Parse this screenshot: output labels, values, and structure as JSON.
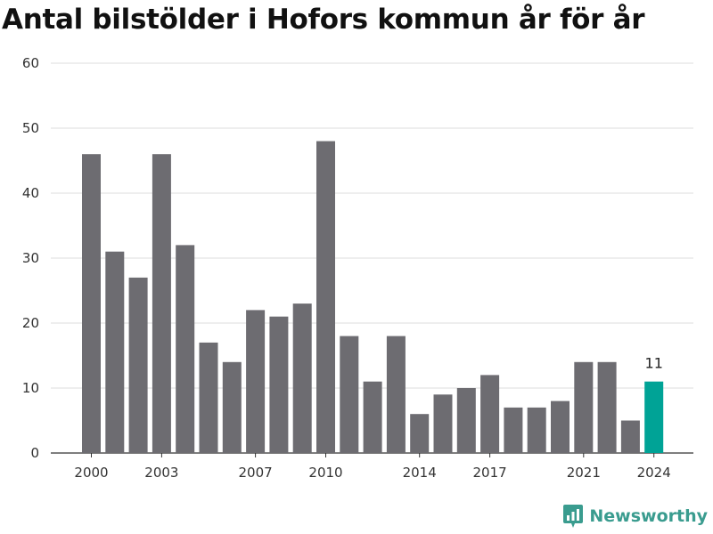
{
  "title": "Antal bilstölder i Hofors kommun år för år",
  "brand": {
    "name": "Newsworthy",
    "logo_icon": "newsworthy-logo-icon",
    "color": "#3a9c8f"
  },
  "colors": {
    "bar": "#6d6c71",
    "highlight": "#00a396",
    "grid": "#dddddd",
    "baseline": "#333333"
  },
  "chart_data": {
    "type": "bar",
    "title": "Antal bilstölder i Hofors kommun år för år",
    "xlabel": "",
    "ylabel": "",
    "categories": [
      "2000",
      "2001",
      "2002",
      "2003",
      "2004",
      "2005",
      "2006",
      "2007",
      "2008",
      "2009",
      "2010",
      "2011",
      "2012",
      "2013",
      "2014",
      "2015",
      "2016",
      "2017",
      "2018",
      "2019",
      "2020",
      "2021",
      "2022",
      "2023",
      "2024"
    ],
    "values": [
      46,
      31,
      27,
      46,
      32,
      17,
      14,
      22,
      21,
      23,
      48,
      18,
      11,
      18,
      6,
      9,
      10,
      12,
      7,
      7,
      8,
      14,
      14,
      5,
      11
    ],
    "ylim": [
      0,
      60
    ],
    "yticks": [
      0,
      10,
      20,
      30,
      40,
      50,
      60
    ],
    "xtick_labels": [
      "2000",
      "2003",
      "2007",
      "2010",
      "2014",
      "2017",
      "2021",
      "2024"
    ],
    "highlight_category": "2024",
    "highlight_label": "11",
    "grid": true,
    "legend": "none"
  }
}
